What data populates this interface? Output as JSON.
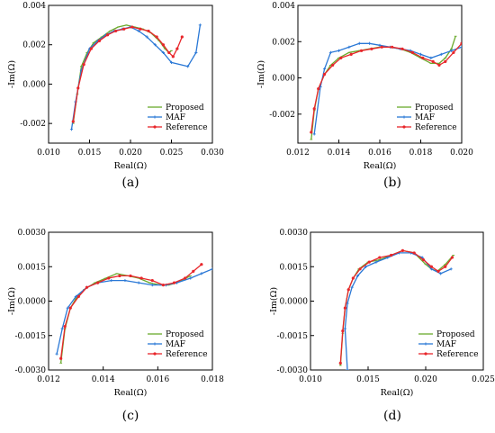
{
  "colors": {
    "Proposed": "#6aaa2c",
    "MAF": "#2a78d6",
    "Reference": "#e8262b"
  },
  "chart_data": [
    {
      "type": "line",
      "panel_label": "(a)",
      "xlabel": "Real(Ω)",
      "ylabel": "-Im(Ω)",
      "xlim": [
        0.01,
        0.03
      ],
      "ylim": [
        -0.003,
        0.004
      ],
      "xticks": [
        "0.010",
        "0.015",
        "0.020",
        "0.025",
        "0.030"
      ],
      "yticks": [
        "-0.002",
        "0.000",
        "0.002",
        "0.004"
      ],
      "legend_position": "lower-right",
      "series": [
        {
          "name": "Proposed",
          "x": [
            0.013,
            0.0135,
            0.014,
            0.0147,
            0.0155,
            0.0165,
            0.0175,
            0.0185,
            0.0195,
            0.0205,
            0.0215,
            0.0225,
            0.0235,
            0.0242,
            0.0247,
            0.025
          ],
          "y": [
            -0.002,
            -0.0005,
            0.0009,
            0.0016,
            0.0021,
            0.0024,
            0.0027,
            0.0029,
            0.003,
            0.0029,
            0.0028,
            0.0026,
            0.0022,
            0.0018,
            0.0016,
            0.0017
          ]
        },
        {
          "name": "MAF",
          "x": [
            0.0128,
            0.0133,
            0.014,
            0.015,
            0.016,
            0.017,
            0.018,
            0.019,
            0.02,
            0.021,
            0.022,
            0.023,
            0.024,
            0.025,
            0.027,
            0.028,
            0.0285
          ],
          "y": [
            -0.0023,
            -0.0009,
            0.0007,
            0.0018,
            0.0022,
            0.0025,
            0.0027,
            0.0028,
            0.0029,
            0.0027,
            0.0024,
            0.002,
            0.0016,
            0.0011,
            0.0009,
            0.0016,
            0.003
          ]
        },
        {
          "name": "Reference",
          "x": [
            0.013,
            0.0136,
            0.0143,
            0.0152,
            0.0162,
            0.0172,
            0.0182,
            0.0192,
            0.0202,
            0.0212,
            0.0222,
            0.0232,
            0.024,
            0.0247,
            0.0252,
            0.0257,
            0.0263
          ],
          "y": [
            -0.0019,
            -0.0002,
            0.001,
            0.0018,
            0.0022,
            0.0025,
            0.0027,
            0.0028,
            0.0029,
            0.0028,
            0.0027,
            0.0024,
            0.002,
            0.0016,
            0.0014,
            0.0018,
            0.0024
          ]
        }
      ]
    },
    {
      "type": "line",
      "panel_label": "(b)",
      "xlabel": "Real(Ω)",
      "ylabel": "-Im(Ω)",
      "xlim": [
        0.012,
        0.02
      ],
      "ylim": [
        -0.0036,
        0.004
      ],
      "xticks": [
        "0.012",
        "0.014",
        "0.016",
        "0.018",
        "0.020"
      ],
      "yticks": [
        "-0.002",
        "0.000",
        "0.002",
        "0.004"
      ],
      "legend_position": "lower-right",
      "series": [
        {
          "name": "Proposed",
          "x": [
            0.01265,
            0.0128,
            0.013,
            0.0133,
            0.0136,
            0.014,
            0.0145,
            0.015,
            0.0155,
            0.016,
            0.0165,
            0.017,
            0.0175,
            0.018,
            0.0185,
            0.0189,
            0.0192,
            0.0195,
            0.0197
          ],
          "y": [
            -0.0034,
            -0.0018,
            -0.0006,
            0.0002,
            0.0007,
            0.0011,
            0.0014,
            0.0015,
            0.0016,
            0.0017,
            0.0017,
            0.0016,
            0.0014,
            0.0011,
            0.0008,
            0.0008,
            0.0011,
            0.0016,
            0.0023
          ]
        },
        {
          "name": "MAF",
          "x": [
            0.0128,
            0.0131,
            0.0133,
            0.0136,
            0.014,
            0.0145,
            0.015,
            0.0155,
            0.016,
            0.0165,
            0.017,
            0.0175,
            0.018,
            0.0185,
            0.019,
            0.0195,
            0.02
          ],
          "y": [
            -0.0031,
            -0.0005,
            0.0005,
            0.0014,
            0.0015,
            0.0017,
            0.0019,
            0.0019,
            0.0018,
            0.0017,
            0.0016,
            0.0015,
            0.0013,
            0.0011,
            0.0013,
            0.0015,
            0.0017
          ]
        },
        {
          "name": "Reference",
          "x": [
            0.01265,
            0.0128,
            0.013,
            0.0133,
            0.0137,
            0.0141,
            0.0146,
            0.0151,
            0.0156,
            0.0161,
            0.0166,
            0.0171,
            0.0176,
            0.0181,
            0.0186,
            0.0189,
            0.0192,
            0.0196,
            0.02
          ],
          "y": [
            -0.003,
            -0.0017,
            -0.0006,
            0.0002,
            0.0007,
            0.0011,
            0.0013,
            0.0015,
            0.0016,
            0.0017,
            0.0017,
            0.0016,
            0.0014,
            0.0011,
            0.0009,
            0.0007,
            0.0009,
            0.0014,
            0.0019
          ]
        }
      ]
    },
    {
      "type": "line",
      "panel_label": "(c)",
      "xlabel": "Real(Ω)",
      "ylabel": "-Im(Ω)",
      "xlim": [
        0.012,
        0.018
      ],
      "ylim": [
        -0.003,
        0.003
      ],
      "xticks": [
        "0.012",
        "0.014",
        "0.016",
        "0.018"
      ],
      "yticks": [
        "-0.0030",
        "-0.0015",
        "0.0000",
        "0.0015",
        "0.0030"
      ],
      "legend_position": "lower-right",
      "series": [
        {
          "name": "Proposed",
          "x": [
            0.01245,
            0.0126,
            0.0128,
            0.013,
            0.0133,
            0.0137,
            0.0141,
            0.0145,
            0.0149,
            0.0153,
            0.0157,
            0.0161,
            0.0164,
            0.0167,
            0.0172
          ],
          "y": [
            -0.0027,
            -0.0012,
            -0.0003,
            0.0001,
            0.0005,
            0.0008,
            0.001,
            0.0012,
            0.0011,
            0.001,
            0.0008,
            0.0007,
            0.0007,
            0.0008,
            0.0011
          ]
        },
        {
          "name": "MAF",
          "x": [
            0.0123,
            0.0125,
            0.0127,
            0.013,
            0.0134,
            0.0138,
            0.0143,
            0.0148,
            0.0153,
            0.0158,
            0.0163,
            0.0167,
            0.0172,
            0.0176,
            0.018
          ],
          "y": [
            -0.0023,
            -0.0012,
            -0.0003,
            0.0002,
            0.0006,
            0.0008,
            0.0009,
            0.0009,
            0.0008,
            0.0007,
            0.0007,
            0.0008,
            0.001,
            0.0012,
            0.0014
          ]
        },
        {
          "name": "Reference",
          "x": [
            0.01245,
            0.0126,
            0.0128,
            0.0131,
            0.0134,
            0.0138,
            0.0142,
            0.0146,
            0.015,
            0.0154,
            0.0158,
            0.0162,
            0.0166,
            0.017,
            0.0173,
            0.0176
          ],
          "y": [
            -0.0025,
            -0.0011,
            -0.0003,
            0.0002,
            0.0006,
            0.0008,
            0.001,
            0.0011,
            0.0011,
            0.001,
            0.0009,
            0.0007,
            0.0008,
            0.001,
            0.0013,
            0.0016
          ]
        }
      ]
    },
    {
      "type": "line",
      "panel_label": "(d)",
      "xlabel": "Real(Ω)",
      "ylabel": "-Im(Ω)",
      "xlim": [
        0.01,
        0.025
      ],
      "ylim": [
        -0.003,
        0.003
      ],
      "xticks": [
        "0.010",
        "0.015",
        "0.020",
        "0.025"
      ],
      "yticks": [
        "-0.0030",
        "-0.0015",
        "0.0000",
        "0.0015",
        "0.0030"
      ],
      "legend_position": "lower-right",
      "series": [
        {
          "name": "Proposed",
          "x": [
            0.0126,
            0.0128,
            0.013,
            0.0133,
            0.0137,
            0.0142,
            0.015,
            0.016,
            0.017,
            0.018,
            0.019,
            0.02,
            0.0205,
            0.021,
            0.0217,
            0.0224
          ],
          "y": [
            -0.0028,
            -0.0014,
            -0.0003,
            0.0005,
            0.001,
            0.0014,
            0.0017,
            0.0018,
            0.002,
            0.0022,
            0.0021,
            0.0016,
            0.0014,
            0.0013,
            0.0016,
            0.002
          ]
        },
        {
          "name": "MAF",
          "x": [
            0.0132,
            0.013,
            0.0132,
            0.0136,
            0.0141,
            0.0148,
            0.0157,
            0.0167,
            0.0177,
            0.0187,
            0.0197,
            0.0205,
            0.0213,
            0.0222
          ],
          "y": [
            -0.003,
            -0.0012,
            -0.0001,
            0.0006,
            0.0011,
            0.0015,
            0.0017,
            0.0019,
            0.0021,
            0.0021,
            0.0019,
            0.0014,
            0.0012,
            0.0014
          ]
        },
        {
          "name": "Reference",
          "x": [
            0.0126,
            0.0128,
            0.013,
            0.0133,
            0.0137,
            0.0143,
            0.0151,
            0.016,
            0.017,
            0.018,
            0.019,
            0.0198,
            0.0205,
            0.0211,
            0.0217,
            0.0223
          ],
          "y": [
            -0.0027,
            -0.0013,
            -0.0003,
            0.0005,
            0.001,
            0.0014,
            0.0017,
            0.0019,
            0.002,
            0.0022,
            0.0021,
            0.0018,
            0.0015,
            0.0013,
            0.0015,
            0.0019
          ]
        }
      ]
    }
  ]
}
